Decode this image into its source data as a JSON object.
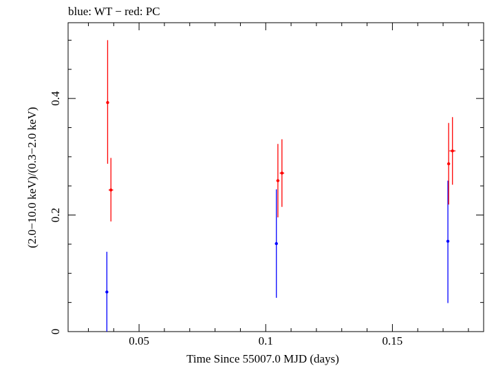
{
  "chart_data": {
    "type": "scatter",
    "title": "blue: WT − red: PC",
    "xlabel": "Time Since 55007.0 MJD (days)",
    "ylabel": "(2.0−10.0 keV)/(0.3−2.0 keV)",
    "xlim": [
      0.022,
      0.186
    ],
    "ylim": [
      0,
      0.53
    ],
    "x_ticks": [
      {
        "value": 0.05,
        "label": "0.05"
      },
      {
        "value": 0.1,
        "label": "0.1"
      },
      {
        "value": 0.15,
        "label": "0.15"
      }
    ],
    "y_ticks": [
      {
        "value": 0,
        "label": "0"
      },
      {
        "value": 0.2,
        "label": "0.2"
      },
      {
        "value": 0.4,
        "label": "0.4"
      }
    ],
    "series": [
      {
        "name": "WT",
        "color": "#0000ff",
        "points": [
          {
            "x": 0.0373,
            "y": 0.068,
            "ylo": 0.0,
            "yhi": 0.137
          },
          {
            "x": 0.1042,
            "y": 0.151,
            "ylo": 0.058,
            "yhi": 0.244
          },
          {
            "x": 0.1719,
            "y": 0.155,
            "ylo": 0.049,
            "yhi": 0.259
          }
        ]
      },
      {
        "name": "PC",
        "color": "#ff0000",
        "points": [
          {
            "x": 0.0376,
            "y": 0.393,
            "ylo": 0.288,
            "yhi": 0.5,
            "xerr": 0.0004
          },
          {
            "x": 0.0389,
            "y": 0.243,
            "ylo": 0.189,
            "yhi": 0.298,
            "xerr": 0.0009
          },
          {
            "x": 0.1048,
            "y": 0.259,
            "ylo": 0.196,
            "yhi": 0.322,
            "xerr": 0.0006
          },
          {
            "x": 0.1064,
            "y": 0.272,
            "ylo": 0.214,
            "yhi": 0.33,
            "xerr": 0.0009
          },
          {
            "x": 0.1722,
            "y": 0.288,
            "ylo": 0.218,
            "yhi": 0.358,
            "xerr": 0.0004
          },
          {
            "x": 0.1737,
            "y": 0.31,
            "ylo": 0.252,
            "yhi": 0.368,
            "xerr": 0.0012
          }
        ]
      }
    ]
  }
}
